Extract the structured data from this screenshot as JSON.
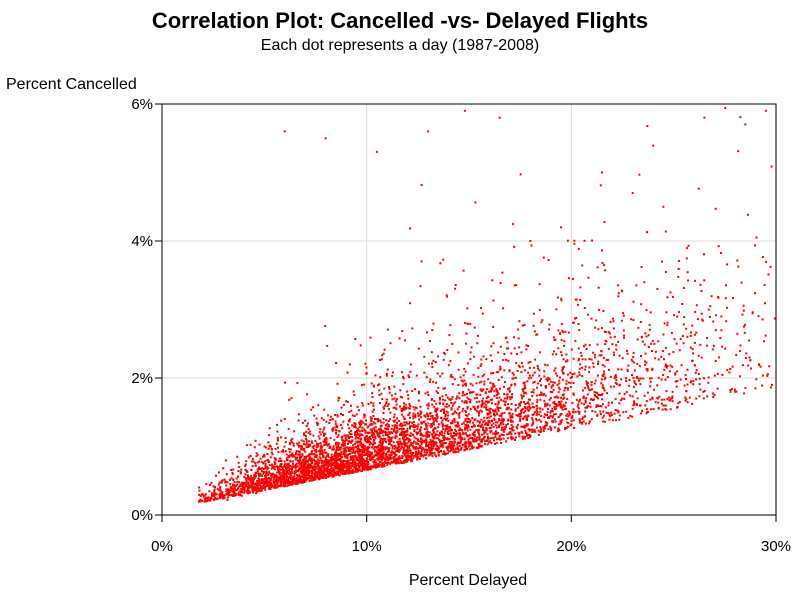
{
  "chart_data": {
    "type": "scatter",
    "title": "Correlation Plot: Cancelled -vs- Delayed Flights",
    "subtitle": "Each dot represents a day (1987-2008)",
    "xlabel": "Percent Delayed",
    "ylabel": "Percent Cancelled",
    "xlim": [
      0,
      30
    ],
    "ylim": [
      0,
      6
    ],
    "x_ticks": [
      0,
      10,
      20,
      30
    ],
    "y_ticks": [
      0,
      2,
      4,
      6
    ],
    "x_tick_labels": [
      "0%",
      "10%",
      "20%",
      "30%"
    ],
    "y_tick_labels": [
      "0%",
      "2%",
      "4%",
      "6%"
    ],
    "grid": true,
    "marker_color": "#ff0000",
    "n_points": 5000,
    "series": [
      {
        "x": [
          1.9,
          2.4,
          2.8,
          3.2,
          3.5,
          3.9,
          4.2,
          4.6,
          5.0,
          5.3,
          5.7,
          6.0,
          6.4,
          6.8,
          7.1,
          7.5,
          7.9,
          8.2,
          8.6,
          9.0,
          9.4,
          9.8,
          10.2,
          10.6,
          11.0,
          11.4,
          11.8,
          12.2,
          12.7,
          13.1,
          13.6,
          14.0,
          14.5,
          15.0,
          15.5,
          16.0,
          16.5,
          17.0,
          17.6,
          18.1,
          18.7,
          19.2,
          19.8,
          20.4,
          21.0,
          21.6,
          22.3,
          23.0,
          23.7,
          24.5,
          25.3,
          26.1,
          27.0,
          28.0,
          29.0,
          29.8,
          6.0,
          8.0,
          10.5,
          13.0,
          14.8,
          16.5,
          18.0,
          19.5,
          21.5,
          23.0,
          24.5,
          26.5,
          28.5,
          29.5
        ],
        "y": [
          0.2,
          0.25,
          0.3,
          0.22,
          0.35,
          0.28,
          0.4,
          0.32,
          0.45,
          0.38,
          0.5,
          0.42,
          0.55,
          0.48,
          0.6,
          0.52,
          0.65,
          0.58,
          0.7,
          0.62,
          0.75,
          0.68,
          0.8,
          0.74,
          0.85,
          0.8,
          0.9,
          0.86,
          0.95,
          0.92,
          1.0,
          0.98,
          1.05,
          1.04,
          1.1,
          1.12,
          1.15,
          1.2,
          1.2,
          1.25,
          1.3,
          1.28,
          1.35,
          1.4,
          1.4,
          1.45,
          1.5,
          1.55,
          1.5,
          1.6,
          1.65,
          1.7,
          1.75,
          1.8,
          1.85,
          1.9,
          5.6,
          5.5,
          5.3,
          5.6,
          5.9,
          5.8,
          4.0,
          4.2,
          5.0,
          4.7,
          4.5,
          5.8,
          5.7,
          5.9
        ]
      }
    ]
  }
}
